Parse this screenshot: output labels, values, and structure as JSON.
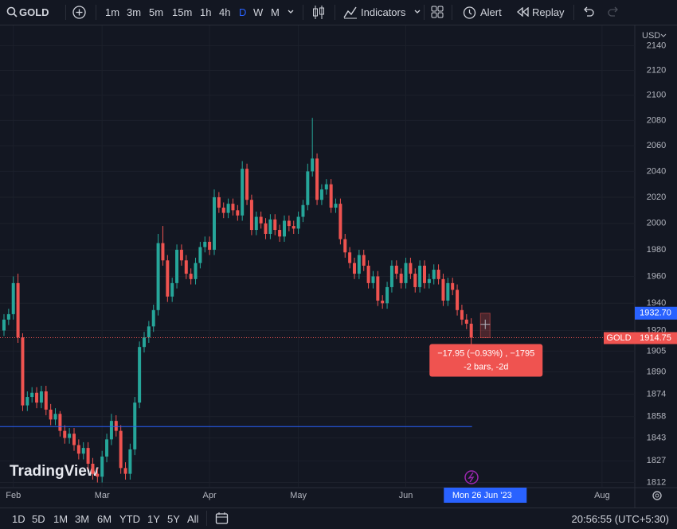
{
  "toolbar": {
    "symbol": "GOLD",
    "intervals": [
      "1m",
      "3m",
      "5m",
      "15m",
      "1h",
      "4h",
      "D",
      "W",
      "M"
    ],
    "active_interval": "D",
    "indicators": "Indicators",
    "alert": "Alert",
    "replay": "Replay"
  },
  "chart_data": {
    "type": "candlestick",
    "currency": "USD",
    "watermark": "TradingView",
    "up_color": "#26a69a",
    "down_color": "#ef5350",
    "log_scale": true,
    "grid": true,
    "ylim": [
      1809,
      2154
    ],
    "yticks": [
      2140,
      2120,
      2100,
      2080,
      2060,
      2040,
      2020,
      2000,
      1980,
      1960,
      1940,
      1920,
      1905,
      1890,
      1874,
      1858,
      1843,
      1827,
      1812
    ],
    "xlim": [
      -0.85,
      135
    ],
    "xticks": [
      {
        "value": 2,
        "label": "Feb"
      },
      {
        "value": 21,
        "label": "Mar"
      },
      {
        "value": 44,
        "label": "Apr"
      },
      {
        "value": 63,
        "label": "May"
      },
      {
        "value": 86,
        "label": "Jun"
      },
      {
        "value": 128,
        "label": "Aug"
      }
    ],
    "open": [
      1920,
      1928,
      1932,
      1955,
      1915,
      1866,
      1872,
      1875,
      1868,
      1876,
      1863,
      1856,
      1860,
      1848,
      1843,
      1846,
      1838,
      1832,
      1836,
      1825,
      1818,
      1816,
      1830,
      1842,
      1855,
      1848,
      1822,
      1818,
      1835,
      1868,
      1908,
      1915,
      1923,
      1935,
      1985,
      1972,
      1945,
      1955,
      1980,
      1972,
      1962,
      1958,
      1970,
      1982,
      1986,
      1980,
      2020,
      2012,
      2008,
      2015,
      2010,
      2006,
      2042,
      2018,
      1995,
      2005,
      2000,
      1992,
      2003,
      1995,
      1990,
      2002,
      1998,
      1996,
      2005,
      2014,
      2040,
      2050,
      2018,
      2026,
      2030,
      2012,
      2015,
      1988,
      1978,
      1970,
      1962,
      1976,
      1968,
      1955,
      1960,
      1942,
      1940,
      1952,
      1968,
      1962,
      1955,
      1970,
      1962,
      1952,
      1968,
      1955,
      1958,
      1965,
      1958,
      1942,
      1955,
      1950,
      1935,
      1928,
      1925
    ],
    "high": [
      1932,
      1936,
      1960,
      1962,
      1918,
      1876,
      1879,
      1879,
      1880,
      1880,
      1867,
      1864,
      1862,
      1852,
      1850,
      1850,
      1842,
      1840,
      1840,
      1829,
      1822,
      1834,
      1846,
      1860,
      1859,
      1852,
      1826,
      1839,
      1872,
      1912,
      1919,
      1927,
      1939,
      1992,
      1998,
      1976,
      1959,
      1984,
      1984,
      1976,
      1966,
      1974,
      1986,
      1990,
      1990,
      2026,
      2024,
      2016,
      2019,
      2019,
      2014,
      2048,
      2046,
      2022,
      2009,
      2009,
      2004,
      2007,
      2007,
      1999,
      2006,
      2006,
      2002,
      2009,
      2018,
      2046,
      2082,
      2054,
      2030,
      2034,
      2034,
      2019,
      2019,
      1992,
      1982,
      1974,
      1980,
      1980,
      1972,
      1964,
      1964,
      1946,
      1956,
      1972,
      1972,
      1966,
      1974,
      1974,
      1966,
      1972,
      1972,
      1962,
      1969,
      1969,
      1962,
      1959,
      1959,
      1954,
      1939,
      1932,
      1929
    ],
    "low": [
      1916,
      1924,
      1928,
      1911,
      1862,
      1862,
      1868,
      1864,
      1864,
      1859,
      1852,
      1852,
      1844,
      1839,
      1839,
      1834,
      1828,
      1828,
      1821,
      1814,
      1812,
      1812,
      1826,
      1838,
      1844,
      1818,
      1814,
      1814,
      1831,
      1864,
      1904,
      1911,
      1919,
      1931,
      1968,
      1941,
      1941,
      1951,
      1968,
      1958,
      1954,
      1954,
      1966,
      1978,
      1976,
      1976,
      2008,
      2004,
      2004,
      2006,
      2002,
      2002,
      2014,
      1991,
      1991,
      1996,
      1988,
      1988,
      1991,
      1986,
      1986,
      1994,
      1992,
      1992,
      2001,
      2010,
      2036,
      2014,
      2014,
      2022,
      2008,
      2008,
      1984,
      1974,
      1966,
      1958,
      1958,
      1964,
      1951,
      1951,
      1938,
      1936,
      1936,
      1948,
      1958,
      1951,
      1951,
      1958,
      1948,
      1948,
      1951,
      1951,
      1954,
      1954,
      1938,
      1938,
      1946,
      1931,
      1924,
      1921,
      1910
    ],
    "close": [
      1928,
      1932,
      1955,
      1915,
      1866,
      1872,
      1875,
      1868,
      1876,
      1863,
      1856,
      1860,
      1848,
      1843,
      1846,
      1838,
      1832,
      1836,
      1825,
      1818,
      1816,
      1830,
      1842,
      1855,
      1848,
      1822,
      1818,
      1835,
      1868,
      1908,
      1915,
      1923,
      1935,
      1985,
      1972,
      1945,
      1955,
      1980,
      1972,
      1962,
      1958,
      1970,
      1982,
      1986,
      1980,
      2020,
      2012,
      2008,
      2015,
      2010,
      2006,
      2042,
      2018,
      1995,
      2005,
      2000,
      1992,
      2003,
      1995,
      1990,
      2002,
      1998,
      1996,
      2005,
      2014,
      2040,
      2050,
      2018,
      2026,
      2030,
      2012,
      2015,
      1988,
      1978,
      1970,
      1962,
      1976,
      1968,
      1955,
      1960,
      1942,
      1940,
      1952,
      1968,
      1962,
      1955,
      1970,
      1962,
      1952,
      1968,
      1955,
      1958,
      1965,
      1958,
      1942,
      1955,
      1950,
      1935,
      1928,
      1925,
      1914.75
    ],
    "last_price": {
      "name": "GOLD",
      "value": 1914.75
    },
    "horizontal_line": 1851,
    "crosshair": {
      "index": 103,
      "date_label": "Mon 26 Jun '23",
      "price": {
        "value": 1932.7,
        "label": "1932.70"
      }
    },
    "measure": {
      "line1": "−17.95 (−0.93%) , −1795",
      "line2": "-2 bars, -2d"
    }
  },
  "bottom_bar": {
    "ranges": [
      "1D",
      "5D",
      "1M",
      "3M",
      "6M",
      "YTD",
      "1Y",
      "5Y",
      "All"
    ],
    "clock": "20:56:55 (UTC+5:30)"
  }
}
